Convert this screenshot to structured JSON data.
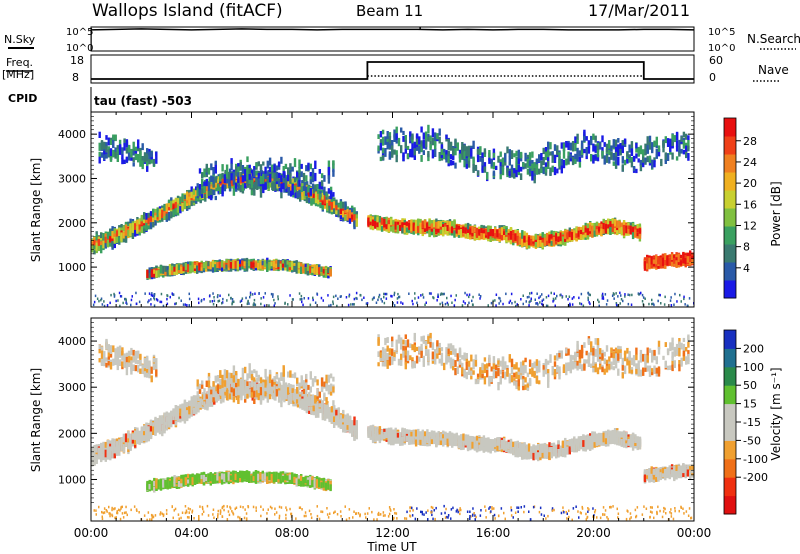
{
  "header": {
    "station": "Wallops Island (fitACF)",
    "beam": "Beam 11",
    "date": "17/Mar/2011",
    "mode": "tau (fast) -503"
  },
  "left_labels": {
    "nsky": "N.Sky",
    "freq": "Freq.",
    "freq_unit": "[MHz]",
    "cpid": "CPID"
  },
  "right_labels": {
    "nsearch": "N.Search",
    "nave": "Nave"
  },
  "chart_data": [
    {
      "id": "noise",
      "type": "line",
      "series": [
        {
          "name": "N.Sky",
          "style": "solid"
        },
        {
          "name": "N.Search",
          "style": "dotted"
        }
      ],
      "x": [
        0,
        1,
        2,
        3,
        4,
        5,
        6,
        7,
        8,
        9,
        10,
        11,
        12,
        13,
        14,
        15,
        16,
        17,
        18,
        19,
        20,
        21,
        22,
        23,
        24
      ],
      "y_levels": [
        4.4,
        4.5,
        4.6,
        4.5,
        4.4,
        4.5,
        4.6,
        4.5,
        4.5,
        4.4,
        4.5,
        4.5,
        4.5,
        4.5,
        4.4,
        4.5,
        4.4,
        4.5,
        4.5,
        4.4,
        4.4,
        4.4,
        4.5,
        4.5,
        4.4
      ],
      "y_ticks": [
        "10^0",
        "10^5"
      ],
      "y2_ticks": [
        "10^0",
        "10^5"
      ],
      "xlim": [
        0,
        24
      ]
    },
    {
      "id": "freq_nave",
      "type": "line",
      "series": [
        {
          "name": "Freq.",
          "style": "solid",
          "x": [
            0,
            11,
            11,
            22,
            22,
            24
          ],
          "y": [
            8.5,
            8.5,
            17,
            17,
            8.5,
            8.5
          ]
        },
        {
          "name": "Nave",
          "style": "dotted",
          "x": [
            0,
            24
          ],
          "y": [
            0,
            0
          ]
        }
      ],
      "y_ticks": [
        "8",
        "18"
      ],
      "y2_ticks": [
        "0",
        "60"
      ],
      "xlim": [
        0,
        24
      ]
    },
    {
      "id": "power",
      "type": "heatmap",
      "ylabel": "Slant Range [km]",
      "ylim": [
        100,
        4500
      ],
      "y_ticks": [
        1000,
        2000,
        3000,
        4000
      ],
      "xlim": [
        0,
        24
      ],
      "colorbar": {
        "label": "Power [dB]",
        "ticks": [
          "4",
          "8",
          "12",
          "16",
          "20",
          "24",
          "28"
        ],
        "colors": [
          "#1a1ae6",
          "#2a5aa8",
          "#3a7a70",
          "#3aa060",
          "#80c040",
          "#c8d030",
          "#f0b020",
          "#f08020",
          "#f04018",
          "#e81010"
        ]
      },
      "bands": [
        {
          "t0": 0.0,
          "t1": 10.6,
          "r": [
            1500,
            1720,
            2000,
            2330,
            2650,
            2950,
            2980,
            2950,
            2700,
            2400,
            2050
          ],
          "w": 320
        },
        {
          "t0": 11.0,
          "t1": 21.8,
          "r": [
            2020,
            1930,
            1900,
            1880,
            1760,
            1740,
            1580,
            1640,
            1800,
            1930,
            1780
          ],
          "w": 220
        },
        {
          "t0": 22.0,
          "t1": 24.0,
          "r": [
            1080,
            1150,
            1200
          ],
          "w": 180
        },
        {
          "t0": 2.2,
          "t1": 9.5,
          "r": [
            850,
            1000,
            1060,
            1040,
            880
          ],
          "w": 120
        },
        {
          "t0": 4.2,
          "t1": 9.6,
          "r": [
            2900,
            3050,
            3000,
            2950
          ],
          "w": 700
        },
        {
          "t0": 0.3,
          "t1": 2.6,
          "r": [
            3700,
            3600,
            3400
          ],
          "w": 500
        },
        {
          "t0": 11.4,
          "t1": 23.8,
          "r": [
            3750,
            3800,
            3350,
            3300,
            3700,
            3500,
            3800
          ],
          "w": 600
        }
      ]
    },
    {
      "id": "velocity",
      "type": "heatmap",
      "ylabel": "Slant Range [km]",
      "xlabel": "Time UT",
      "ylim": [
        100,
        4500
      ],
      "y_ticks": [
        1000,
        2000,
        3000,
        4000
      ],
      "x_ticks": [
        "00:00",
        "04:00",
        "08:00",
        "12:00",
        "16:00",
        "20:00",
        "00:00"
      ],
      "xlim": [
        0,
        24
      ],
      "colorbar": {
        "label": "Velocity [m s⁻¹]",
        "ticks": [
          "200",
          "100",
          "50",
          "15",
          "-15",
          "-50",
          "-100",
          "-200"
        ],
        "colors": [
          "#1830c0",
          "#207090",
          "#2a8a4a",
          "#60c030",
          "#c8c8c0",
          "#c8c8c0",
          "#f0a030",
          "#f07018",
          "#f03010",
          "#e01010"
        ]
      }
    }
  ]
}
